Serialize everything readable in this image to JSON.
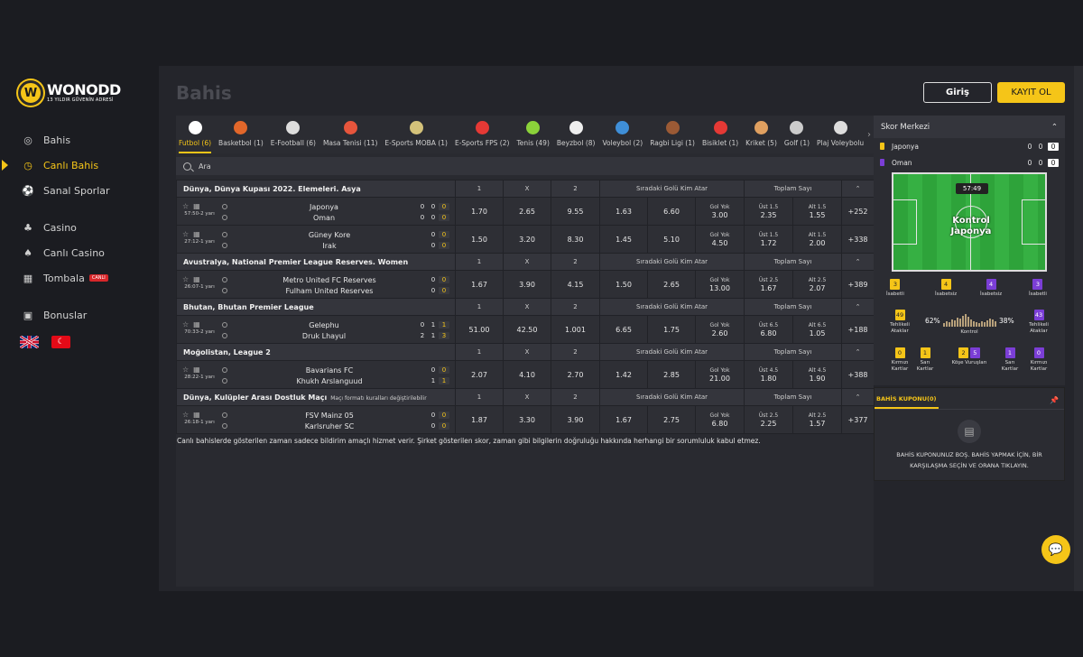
{
  "brand": {
    "logo_letter": "W",
    "name": "WONODD",
    "tagline": "13 YILDIR GÜVENİN ADRESİ"
  },
  "nav": {
    "items": [
      {
        "label": "Bahis",
        "icon": "soccer-icon",
        "active": false
      },
      {
        "label": "Canlı Bahis",
        "icon": "stopwatch-icon",
        "active": true
      },
      {
        "label": "Sanal Sporlar",
        "icon": "virtual-sports-icon",
        "active": false
      },
      {
        "label": "Casino",
        "icon": "casino-icon",
        "active": false
      },
      {
        "label": "Canlı Casino",
        "icon": "live-casino-icon",
        "active": false
      },
      {
        "label": "Tombala",
        "icon": "tombala-icon",
        "active": false,
        "badge": "CANLI"
      },
      {
        "label": "Bonuslar",
        "icon": "gift-icon",
        "active": false
      }
    ]
  },
  "header": {
    "title": "Bahis",
    "login_label": "Giriş",
    "register_label": "KAYIT OL"
  },
  "sports": [
    {
      "label": "Futbol (6)",
      "color": "#ffffff",
      "active": true
    },
    {
      "label": "Basketbol (1)",
      "color": "#e2672a"
    },
    {
      "label": "E-Football (6)",
      "color": "#dddddd"
    },
    {
      "label": "Masa Tenisi (11)",
      "color": "#e7553c"
    },
    {
      "label": "E-Sports MOBA (1)",
      "color": "#d4c27a"
    },
    {
      "label": "E-Sports FPS (2)",
      "color": "#e53935"
    },
    {
      "label": "Tenis (49)",
      "color": "#8bd23a"
    },
    {
      "label": "Beyzbol (8)",
      "color": "#eeeeee"
    },
    {
      "label": "Voleybol (2)",
      "color": "#3f8fd8"
    },
    {
      "label": "Ragbi Ligi (1)",
      "color": "#9b5a35"
    },
    {
      "label": "Bisiklet (1)",
      "color": "#e53935"
    },
    {
      "label": "Kriket (5)",
      "color": "#e0a060"
    },
    {
      "label": "Golf (1)",
      "color": "#cccccc"
    },
    {
      "label": "Plaj Voleybolu",
      "color": "#dddddd"
    }
  ],
  "search": {
    "placeholder": "Ara"
  },
  "markets": {
    "h1": "1",
    "hx": "X",
    "h2": "2",
    "next_goal": "Sıradaki Golü Kim Atar",
    "total": "Toplam Sayı"
  },
  "leagues": [
    {
      "name": "Dünya, Dünya Kupası 2022. Elemeleri. Asya",
      "note": "",
      "matches": [
        {
          "time": "57:50-2 yarı",
          "home": "Japonya",
          "away": "Oman",
          "hs": [
            "0",
            "0",
            "0"
          ],
          "as": [
            "0",
            "0",
            "0"
          ],
          "o1": "1.70",
          "ox": "2.65",
          "o2": "9.55",
          "ng1": "1.63",
          "ng2": "6.60",
          "ngn_lbl": "Gol Yok",
          "ngn": "3.00",
          "ov_lbl": "Üst 1.5",
          "ov": "2.35",
          "un_lbl": "Alt 1.5",
          "un": "1.55",
          "more": "+252"
        },
        {
          "time": "27:12-1 yarı",
          "home": "Güney Kore",
          "away": "Irak",
          "hs": [
            "0",
            "0"
          ],
          "as": [
            "0",
            "0"
          ],
          "o1": "1.50",
          "ox": "3.20",
          "o2": "8.30",
          "ng1": "1.45",
          "ng2": "5.10",
          "ngn_lbl": "Gol Yok",
          "ngn": "4.50",
          "ov_lbl": "Üst 1.5",
          "ov": "1.72",
          "un_lbl": "Alt 1.5",
          "un": "2.00",
          "more": "+338"
        }
      ]
    },
    {
      "name": "Avustralya, National Premier League Reserves. Women",
      "note": "",
      "matches": [
        {
          "time": "26:07-1 yarı",
          "home": "Metro United FC Reserves",
          "away": "Fulham United Reserves",
          "hs": [
            "0",
            "0"
          ],
          "as": [
            "0",
            "0"
          ],
          "o1": "1.67",
          "ox": "3.90",
          "o2": "4.15",
          "ng1": "1.50",
          "ng2": "2.65",
          "ngn_lbl": "Gol Yok",
          "ngn": "13.00",
          "ov_lbl": "Üst 2.5",
          "ov": "1.67",
          "un_lbl": "Alt 2.5",
          "un": "2.07",
          "more": "+389"
        }
      ]
    },
    {
      "name": "Bhutan, Bhutan Premier League",
      "note": "",
      "matches": [
        {
          "time": "70:33-2 yarı",
          "home": "Gelephu",
          "away": "Druk Lhayul",
          "hs": [
            "0",
            "1",
            "1"
          ],
          "as": [
            "2",
            "1",
            "3"
          ],
          "o1": "51.00",
          "ox": "42.50",
          "o2": "1.001",
          "ng1": "6.65",
          "ng2": "1.75",
          "ngn_lbl": "Gol Yok",
          "ngn": "2.60",
          "ov_lbl": "Üst 6.5",
          "ov": "6.80",
          "un_lbl": "Alt 6.5",
          "un": "1.05",
          "more": "+188"
        }
      ]
    },
    {
      "name": "Moğolistan, League 2",
      "note": "",
      "matches": [
        {
          "time": "28:22-1 yarı",
          "home": "Bavarians FC",
          "away": "Khukh Arslanguud",
          "hs": [
            "0",
            "0"
          ],
          "as": [
            "1",
            "1"
          ],
          "o1": "2.07",
          "ox": "4.10",
          "o2": "2.70",
          "ng1": "1.42",
          "ng2": "2.85",
          "ngn_lbl": "Gol Yok",
          "ngn": "21.00",
          "ov_lbl": "Üst 4.5",
          "ov": "1.80",
          "un_lbl": "Alt 4.5",
          "un": "1.90",
          "more": "+388"
        }
      ]
    },
    {
      "name": "Dünya, Kulüpler Arası Dostluk Maçı",
      "note": "Maçı formatı kuralları değiştirilebilir",
      "matches": [
        {
          "time": "26:18-1 yarı",
          "home": "FSV Mainz 05",
          "away": "Karlsruher SC",
          "hs": [
            "0",
            "0"
          ],
          "as": [
            "0",
            "0"
          ],
          "o1": "1.87",
          "ox": "3.30",
          "o2": "3.90",
          "ng1": "1.67",
          "ng2": "2.75",
          "ngn_lbl": "Gol Yok",
          "ngn": "6.80",
          "ov_lbl": "Üst 2.5",
          "ov": "2.25",
          "un_lbl": "Alt 2.5",
          "un": "1.57",
          "more": "+377"
        }
      ]
    }
  ],
  "disclaimer": "Canlı bahislerde gösterilen zaman sadece bildirim amaçlı hizmet verir. Şirket gösterilen skor, zaman gibi bilgilerin doğruluğu hakkında herhangi bir sorumluluk kabul etmez.",
  "score_center": {
    "title": "Skor Merkezi",
    "home": {
      "name": "Japonya",
      "kit": "#f5c518",
      "s1": "0",
      "s2": "0",
      "s3": "0"
    },
    "away": {
      "name": "Oman",
      "kit": "#7b3ed6",
      "s1": "0",
      "s2": "0",
      "s3": "0"
    },
    "clock": "57:49",
    "control_text": "Kontrol",
    "control_team": "Japonya",
    "stats": {
      "home_on_target": "3",
      "home_off_target": "4",
      "away_off_target": "4",
      "away_on_target": "3",
      "on_target_label": "İsabetli",
      "off_target_label": "İsabetsiz",
      "home_dangerous": "49",
      "away_dangerous": "43",
      "dangerous_label": "Tehlikeli Ataklar",
      "home_control": "62%",
      "away_control": "38%",
      "control_label": "Kontrol",
      "home_red": "0",
      "home_yellow": "1",
      "home_corner": "2",
      "away_corner": "5",
      "away_yellow": "1",
      "away_red": "0",
      "red_label": "Kırmızı Kartlar",
      "yellow_label": "Sarı Kartlar",
      "corner_label": "Köşe Vuruşları"
    }
  },
  "coupon": {
    "tab": "BAHİS KUPONU(0)",
    "empty_line1": "BAHİS KUPONUNUZ BOŞ. BAHİS YAPMAK İÇİN, BİR",
    "empty_line2": "KARŞILAŞMA SEÇİN VE ORANA TIKLAYIN."
  }
}
